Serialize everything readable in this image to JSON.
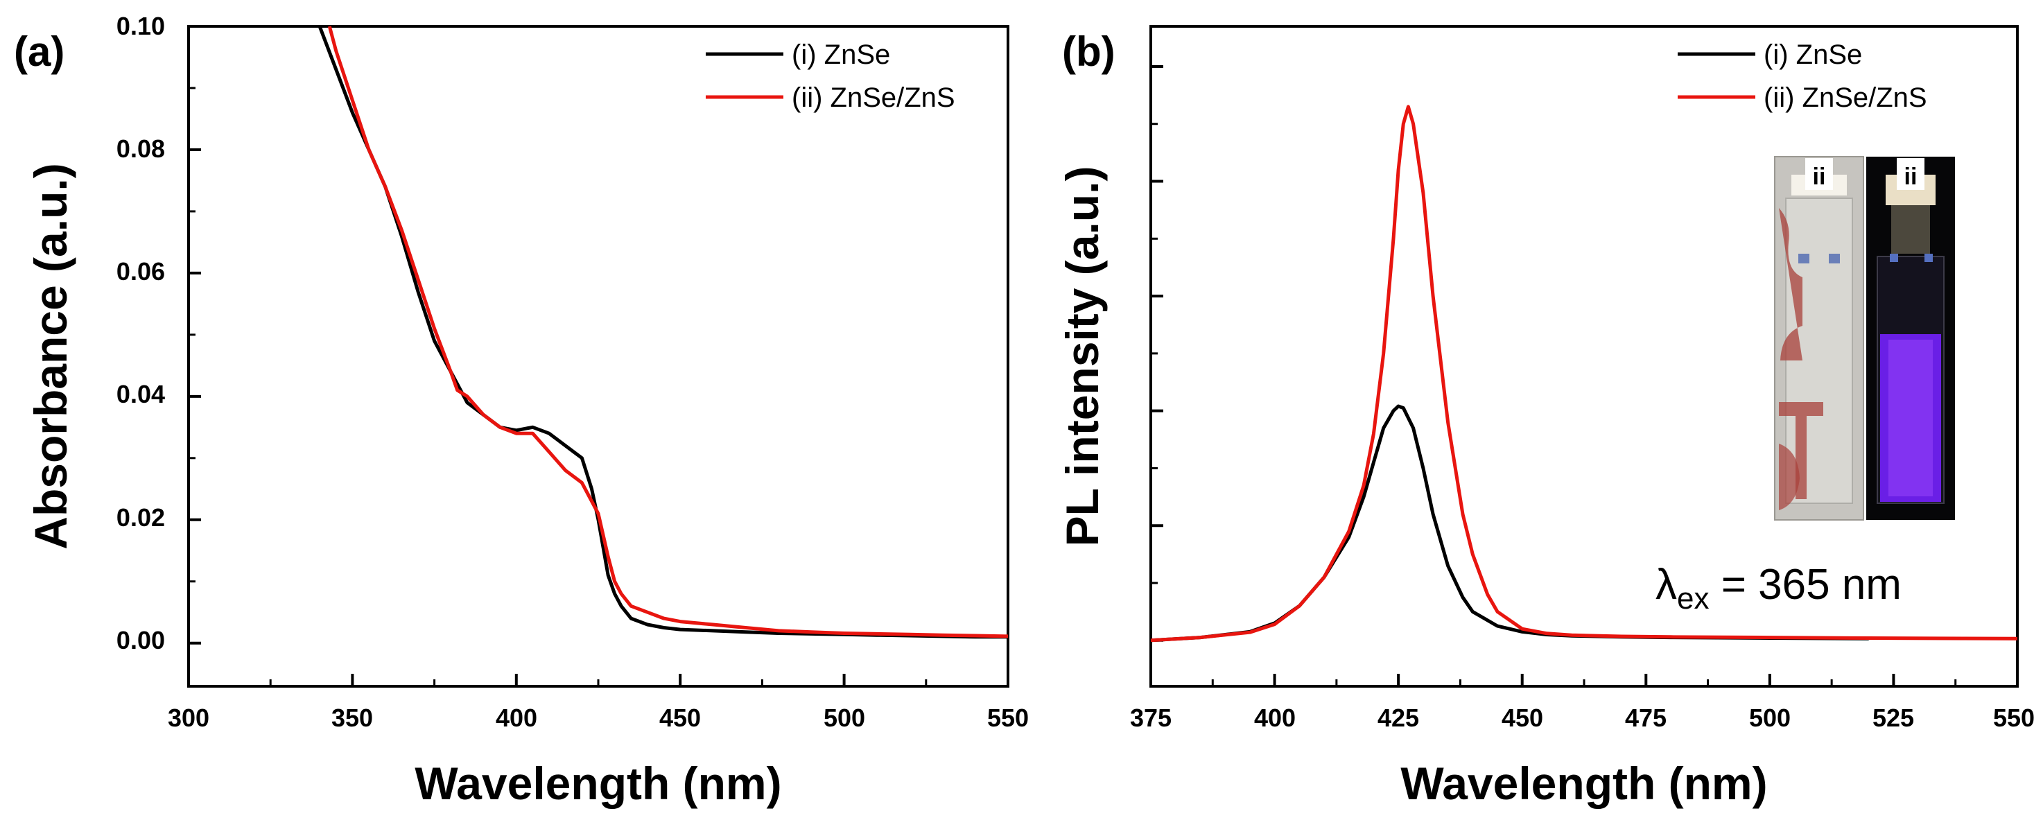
{
  "chart_data": [
    {
      "type": "line",
      "panel_label": "(a)",
      "xlabel": "Wavelength (nm)",
      "ylabel": "Absorbance (a.u.)",
      "xlim": [
        300,
        550
      ],
      "ylim": [
        -0.007,
        0.1
      ],
      "x_ticks": [
        300,
        350,
        400,
        450,
        500,
        550
      ],
      "x_tick_labels": [
        "300",
        "350",
        "400",
        "450",
        "500",
        "550"
      ],
      "y_ticks": [
        0.0,
        0.02,
        0.04,
        0.06,
        0.08,
        0.1
      ],
      "y_tick_labels": [
        "0.00",
        "0.02",
        "0.04",
        "0.06",
        "0.08",
        "0.10"
      ],
      "legend_position": "top-right",
      "series": [
        {
          "name": "(i) ZnSe",
          "color": "#000000",
          "x": [
            340,
            345,
            350,
            355,
            360,
            365,
            370,
            375,
            380,
            385,
            390,
            395,
            400,
            405,
            410,
            415,
            420,
            423,
            425,
            428,
            430,
            432,
            435,
            440,
            445,
            450,
            460,
            470,
            480,
            490,
            500,
            510,
            520,
            530,
            540,
            550
          ],
          "y": [
            0.1,
            0.093,
            0.086,
            0.08,
            0.074,
            0.066,
            0.057,
            0.049,
            0.044,
            0.039,
            0.037,
            0.035,
            0.0345,
            0.035,
            0.034,
            0.032,
            0.03,
            0.025,
            0.02,
            0.011,
            0.008,
            0.006,
            0.004,
            0.003,
            0.0025,
            0.0022,
            0.002,
            0.0018,
            0.0016,
            0.0015,
            0.0014,
            0.0013,
            0.0012,
            0.0011,
            0.001,
            0.001
          ]
        },
        {
          "name": "(ii) ZnSe/ZnS",
          "color": "#e8150f",
          "x": [
            343,
            345,
            350,
            355,
            360,
            365,
            370,
            375,
            380,
            382,
            385,
            390,
            395,
            400,
            405,
            410,
            415,
            420,
            425,
            428,
            430,
            432,
            435,
            440,
            445,
            450,
            460,
            470,
            480,
            490,
            500,
            510,
            520,
            530,
            540,
            550
          ],
          "y": [
            0.1,
            0.096,
            0.088,
            0.08,
            0.074,
            0.067,
            0.059,
            0.051,
            0.044,
            0.041,
            0.04,
            0.037,
            0.035,
            0.034,
            0.034,
            0.031,
            0.028,
            0.026,
            0.021,
            0.014,
            0.01,
            0.008,
            0.006,
            0.005,
            0.004,
            0.0035,
            0.003,
            0.0025,
            0.002,
            0.0018,
            0.0016,
            0.0015,
            0.0014,
            0.0013,
            0.0012,
            0.0011
          ]
        }
      ]
    },
    {
      "type": "line",
      "panel_label": "(b)",
      "xlabel": "Wavelength (nm)",
      "ylabel": "PL intensity (a.u.)",
      "xlim": [
        375,
        550
      ],
      "ylim": [
        -0.08,
        1.07
      ],
      "x_ticks": [
        375,
        400,
        425,
        450,
        475,
        500,
        525,
        550
      ],
      "x_tick_labels": [
        "375",
        "400",
        "425",
        "450",
        "475",
        "500",
        "525",
        "550"
      ],
      "legend_position": "top-right",
      "annotation": {
        "symbol": "λ",
        "subscript": "ex",
        "text": " = 365 nm"
      },
      "inset_labels": [
        "ii",
        "ii"
      ],
      "series": [
        {
          "name": "(i)  ZnSe",
          "color": "#000000",
          "x": [
            375,
            385,
            395,
            400,
            405,
            410,
            415,
            418,
            420,
            422,
            424,
            425,
            426,
            428,
            430,
            432,
            435,
            438,
            440,
            445,
            450,
            455,
            460,
            470,
            480,
            500,
            520
          ],
          "y": [
            0.0,
            0.005,
            0.015,
            0.03,
            0.06,
            0.11,
            0.18,
            0.25,
            0.31,
            0.37,
            0.4,
            0.408,
            0.405,
            0.37,
            0.3,
            0.22,
            0.13,
            0.075,
            0.05,
            0.025,
            0.015,
            0.01,
            0.008,
            0.006,
            0.005,
            0.004,
            0.003
          ]
        },
        {
          "name": "(ii) ZnSe/ZnS",
          "color": "#e8150f",
          "x": [
            375,
            385,
            395,
            400,
            405,
            410,
            415,
            418,
            420,
            422,
            424,
            425,
            426,
            427,
            428,
            430,
            432,
            435,
            438,
            440,
            443,
            445,
            450,
            455,
            460,
            470,
            480,
            500,
            520,
            550
          ],
          "y": [
            0.0,
            0.005,
            0.014,
            0.028,
            0.06,
            0.11,
            0.19,
            0.27,
            0.36,
            0.5,
            0.7,
            0.82,
            0.9,
            0.93,
            0.9,
            0.78,
            0.6,
            0.38,
            0.22,
            0.15,
            0.08,
            0.05,
            0.02,
            0.012,
            0.009,
            0.007,
            0.006,
            0.005,
            0.004,
            0.003
          ]
        }
      ]
    }
  ]
}
